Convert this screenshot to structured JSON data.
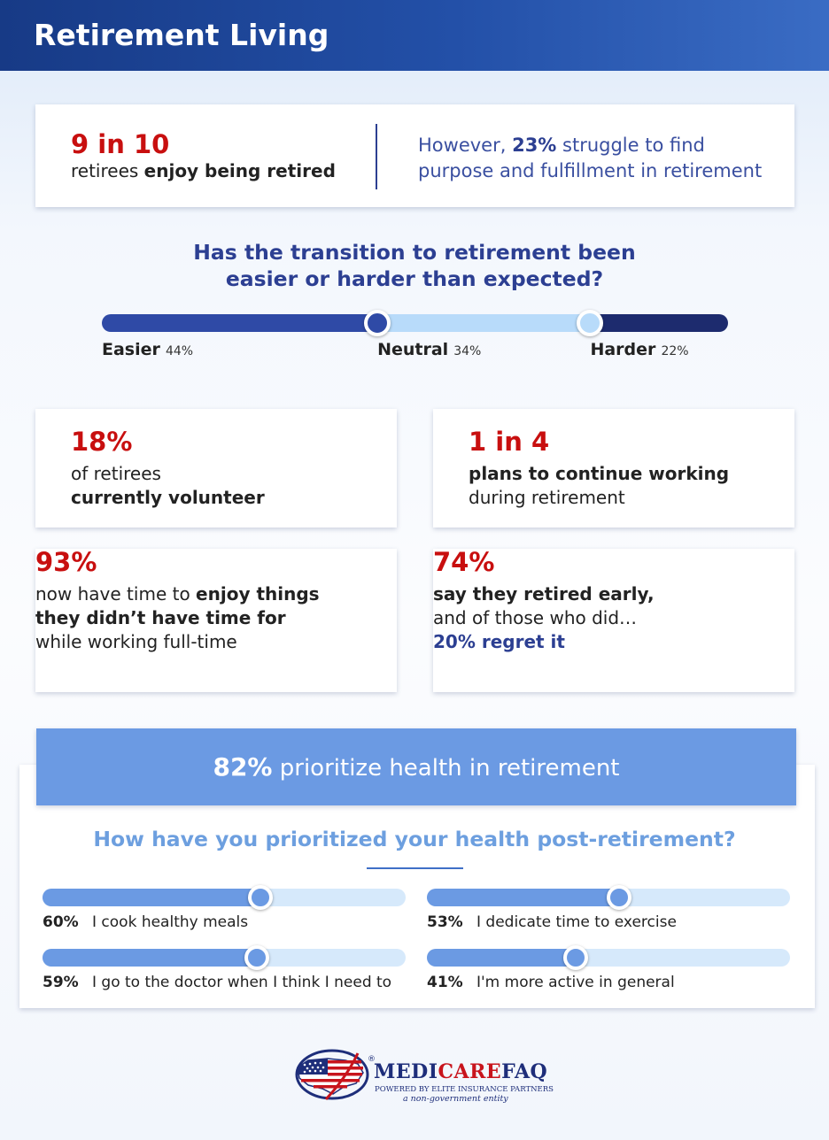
{
  "header": {
    "title": "Retirement Living"
  },
  "top_card": {
    "stat": "9 in 10",
    "line_plain": "retirees ",
    "line_bold": "enjoy being retired",
    "right_pre": "However, ",
    "right_pct": "23%",
    "right_post": " struggle to find",
    "right_line2": "purpose and fulfillment in retirement"
  },
  "transition": {
    "question_line1": "Has the transition to retirement been",
    "question_line2": "easier or harder than expected?"
  },
  "chart_data": [
    {
      "type": "bar",
      "title": "Has the transition to retirement been easier or harder than expected?",
      "categories": [
        "Easier",
        "Neutral",
        "Harder"
      ],
      "values": [
        44,
        34,
        22
      ],
      "value_labels": [
        "44%",
        "34%",
        "22%"
      ],
      "colors": [
        "#2f4aa6",
        "#b8dbfa",
        "#1d2b6e"
      ]
    },
    {
      "type": "bar",
      "title": "How have you prioritized your health post-retirement?",
      "categories": [
        "I cook healthy meals",
        "I dedicate time to exercise",
        "I go to the doctor when I think I need to",
        "I'm more active in general"
      ],
      "values": [
        60,
        53,
        59,
        41
      ],
      "value_labels": [
        "60%",
        "53%",
        "59%",
        "41%"
      ],
      "xlim": [
        0,
        100
      ],
      "colors": {
        "fill": "#6b9ae3",
        "track": "#d6e9fb"
      }
    }
  ],
  "cards": {
    "volunteer": {
      "stat": "18%",
      "line1": "of retirees",
      "line2": "currently volunteer"
    },
    "working": {
      "stat": "1 in 4",
      "line1": "plans to continue working",
      "line2": "during retirement"
    },
    "enjoy": {
      "stat": "93%",
      "line1_plain": "now have time to ",
      "line1_bold": "enjoy things",
      "line2": "they didn’t have time for",
      "line3": "while working full-time"
    },
    "early": {
      "stat": "74%",
      "line1": "say they retired early,",
      "line2": "and of those who did…",
      "line3": "20% regret it"
    }
  },
  "health": {
    "banner_pct": "82%",
    "banner_text": " prioritize health in retirement",
    "question": "How have you prioritized your health post-retirement?"
  },
  "logo": {
    "word_pre": "MEDI",
    "word_mid": "CARE",
    "word_post": "FAQ",
    "reg": "®",
    "sub": "POWERED BY ELITE INSURANCE PARTNERS",
    "sub2": "a non-government entity"
  },
  "colors": {
    "accent_red": "#c80f0f",
    "accent_navy": "#2c3f92",
    "health_blue": "#6b9ae3"
  }
}
